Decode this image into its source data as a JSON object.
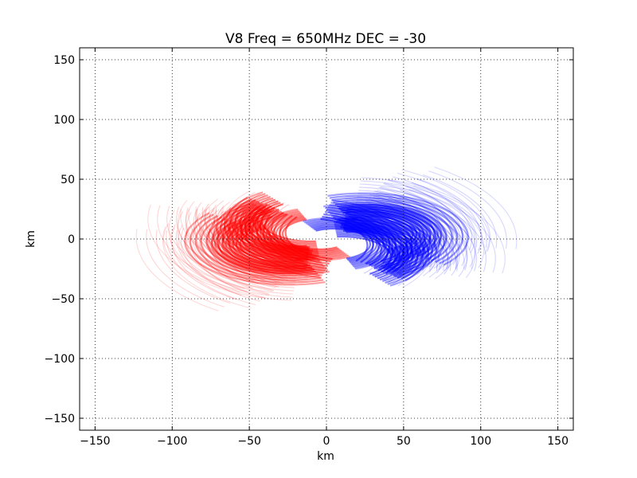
{
  "chart_data": {
    "type": "scatter",
    "title": "V8  Freq = 650MHz  DEC = -30",
    "xlabel": "km",
    "ylabel": "km",
    "xlim": [
      -160,
      160
    ],
    "ylim": [
      -160,
      160
    ],
    "xticks": [
      -150,
      -100,
      -50,
      0,
      50,
      100,
      150
    ],
    "yticks": [
      -150,
      -100,
      -50,
      0,
      50,
      100,
      150
    ],
    "xtick_labels": [
      "−150",
      "−100",
      "−50",
      "0",
      "50",
      "100",
      "150"
    ],
    "ytick_labels": [
      "−150",
      "−100",
      "−50",
      "0",
      "50",
      "100",
      "150"
    ],
    "grid": true,
    "series": [
      {
        "color": "#ff0000",
        "description_kind": "uv-track arcs (baseline) — elliptical arcs centred at origin",
        "tracks": [
          {
            "u": 8,
            "v": 52,
            "ru": 82,
            "rv": 38,
            "a0": 150,
            "a1": 255
          },
          {
            "u": -4,
            "v": 55,
            "ru": 60,
            "rv": 30,
            "a0": 140,
            "a1": 260
          },
          {
            "u": -14,
            "v": 48,
            "ru": 44,
            "rv": 22,
            "a0": 130,
            "a1": 265
          },
          {
            "u": 2,
            "v": 62,
            "ru": 92,
            "rv": 45,
            "a0": 160,
            "a1": 250
          },
          {
            "u": -20,
            "v": 40,
            "ru": 70,
            "rv": 34,
            "a0": 150,
            "a1": 270
          },
          {
            "u": 10,
            "v": 45,
            "ru": 102,
            "rv": 52,
            "a0": 165,
            "a1": 245
          },
          {
            "u": -30,
            "v": 30,
            "ru": 55,
            "rv": 26,
            "a0": 120,
            "a1": 290
          },
          {
            "u": 5,
            "v": 70,
            "ru": 112,
            "rv": 58,
            "a0": 170,
            "a1": 240
          },
          {
            "u": -8,
            "v": 35,
            "ru": 38,
            "rv": 18,
            "a0": 110,
            "a1": 300
          },
          {
            "u": 18,
            "v": 58,
            "ru": 74,
            "rv": 36,
            "a0": 140,
            "a1": 250
          },
          {
            "u": -24,
            "v": 22,
            "ru": 86,
            "rv": 42,
            "a0": 165,
            "a1": 265
          },
          {
            "u": 12,
            "v": 80,
            "ru": 96,
            "rv": 48,
            "a0": 175,
            "a1": 245
          },
          {
            "u": -40,
            "v": 18,
            "ru": 64,
            "rv": 30,
            "a0": 140,
            "a1": 290
          },
          {
            "u": 3,
            "v": 28,
            "ru": 118,
            "rv": 62,
            "a0": 175,
            "a1": 235
          },
          {
            "u": -16,
            "v": 66,
            "ru": 52,
            "rv": 24,
            "a0": 125,
            "a1": 275
          },
          {
            "u": 24,
            "v": 38,
            "ru": 66,
            "rv": 32,
            "a0": 145,
            "a1": 255
          },
          {
            "u": -34,
            "v": 50,
            "ru": 48,
            "rv": 22,
            "a0": 120,
            "a1": 285
          },
          {
            "u": 0,
            "v": 88,
            "ru": 80,
            "rv": 40,
            "a0": 175,
            "a1": 250
          },
          {
            "u": -50,
            "v": 10,
            "ru": 42,
            "rv": 20,
            "a0": 110,
            "a1": 300
          },
          {
            "u": 14,
            "v": 20,
            "ru": 108,
            "rv": 54,
            "a0": 170,
            "a1": 240
          }
        ]
      },
      {
        "color": "#0000ff",
        "description_kind": "conjugate uv-track arcs (mirror of red)",
        "tracks": [
          {
            "u": 8,
            "v": 52,
            "ru": 82,
            "rv": 38,
            "a0": 150,
            "a1": 255
          },
          {
            "u": -4,
            "v": 55,
            "ru": 60,
            "rv": 30,
            "a0": 140,
            "a1": 260
          },
          {
            "u": -14,
            "v": 48,
            "ru": 44,
            "rv": 22,
            "a0": 130,
            "a1": 265
          },
          {
            "u": 2,
            "v": 62,
            "ru": 92,
            "rv": 45,
            "a0": 160,
            "a1": 250
          },
          {
            "u": -20,
            "v": 40,
            "ru": 70,
            "rv": 34,
            "a0": 150,
            "a1": 270
          },
          {
            "u": 10,
            "v": 45,
            "ru": 102,
            "rv": 52,
            "a0": 165,
            "a1": 245
          },
          {
            "u": -30,
            "v": 30,
            "ru": 55,
            "rv": 26,
            "a0": 120,
            "a1": 290
          },
          {
            "u": 5,
            "v": 70,
            "ru": 112,
            "rv": 58,
            "a0": 170,
            "a1": 240
          },
          {
            "u": -8,
            "v": 35,
            "ru": 38,
            "rv": 18,
            "a0": 110,
            "a1": 300
          },
          {
            "u": 18,
            "v": 58,
            "ru": 74,
            "rv": 36,
            "a0": 140,
            "a1": 250
          },
          {
            "u": -24,
            "v": 22,
            "ru": 86,
            "rv": 42,
            "a0": 165,
            "a1": 265
          },
          {
            "u": 12,
            "v": 80,
            "ru": 96,
            "rv": 48,
            "a0": 175,
            "a1": 245
          },
          {
            "u": -40,
            "v": 18,
            "ru": 64,
            "rv": 30,
            "a0": 140,
            "a1": 290
          },
          {
            "u": 3,
            "v": 28,
            "ru": 118,
            "rv": 62,
            "a0": 175,
            "a1": 235
          },
          {
            "u": -16,
            "v": 66,
            "ru": 52,
            "rv": 24,
            "a0": 125,
            "a1": 275
          },
          {
            "u": 24,
            "v": 38,
            "ru": 66,
            "rv": 32,
            "a0": 145,
            "a1": 255
          },
          {
            "u": -34,
            "v": 50,
            "ru": 48,
            "rv": 22,
            "a0": 120,
            "a1": 285
          },
          {
            "u": 0,
            "v": 88,
            "ru": 80,
            "rv": 40,
            "a0": 175,
            "a1": 250
          },
          {
            "u": -50,
            "v": 10,
            "ru": 42,
            "rv": 20,
            "a0": 110,
            "a1": 300
          },
          {
            "u": 14,
            "v": 20,
            "ru": 108,
            "rv": 54,
            "a0": 170,
            "a1": 240
          }
        ]
      }
    ]
  }
}
